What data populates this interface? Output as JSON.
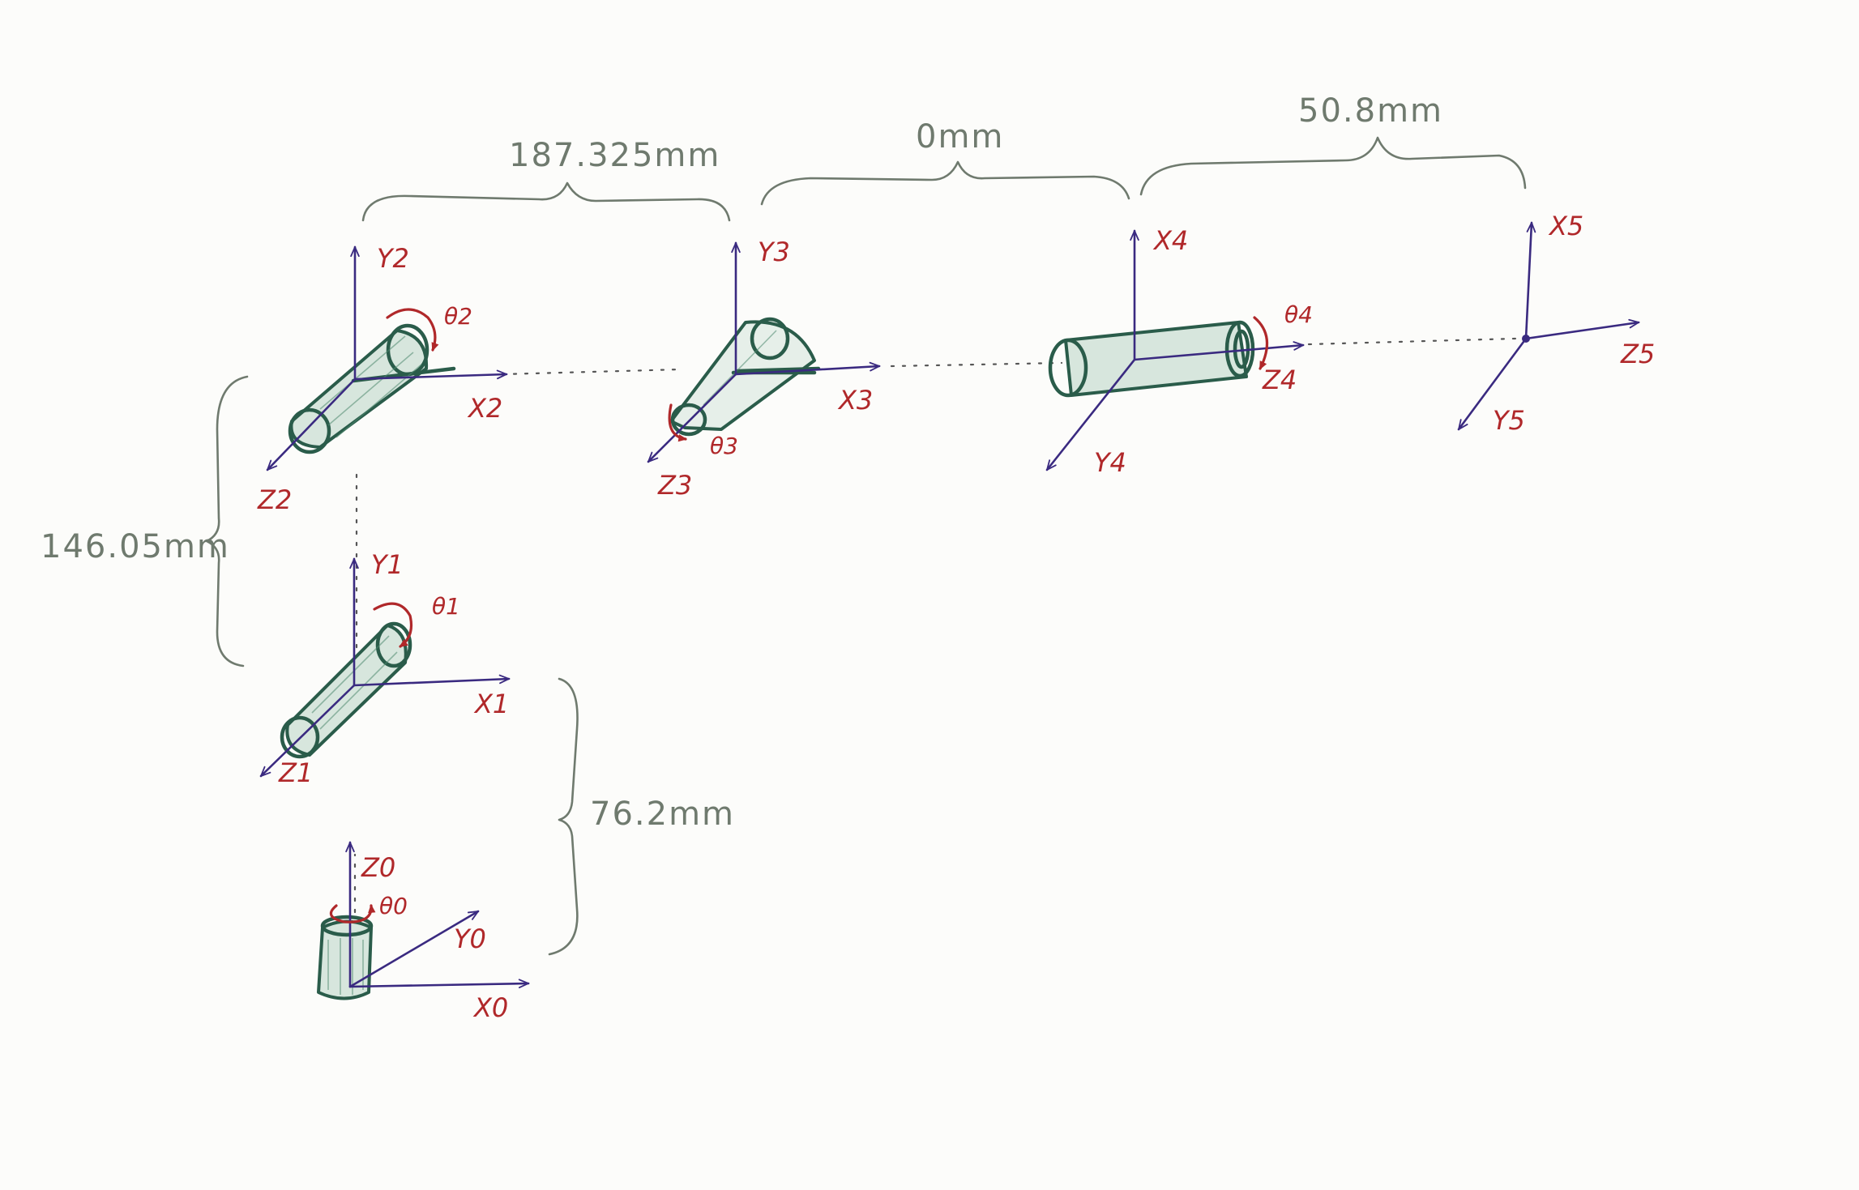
{
  "frames": [
    {
      "axis_labels": [
        "Z0",
        "Y0",
        "X0"
      ],
      "joint_angle": "θ0"
    },
    {
      "axis_labels": [
        "Y1",
        "X1",
        "Z1"
      ],
      "joint_angle": "θ1"
    },
    {
      "axis_labels": [
        "Y2",
        "X2",
        "Z2"
      ],
      "joint_angle": "θ2"
    },
    {
      "axis_labels": [
        "Y3",
        "X3",
        "Z3"
      ],
      "joint_angle": "θ3"
    },
    {
      "axis_labels": [
        "X4",
        "Z4",
        "Y4"
      ],
      "joint_angle": "θ4"
    },
    {
      "axis_labels": [
        "X5",
        "Z5",
        "Y5"
      ]
    }
  ],
  "dimensions": [
    {
      "label": "76.2mm"
    },
    {
      "label": "146.05mm"
    },
    {
      "label": "187.325mm"
    },
    {
      "label": "0mm"
    },
    {
      "label": "50.8mm"
    }
  ],
  "colors": {
    "axes": "#3a2a80",
    "labels": "#b0282a",
    "links": "#2a5c4a",
    "dimensions": "#6f7a6e"
  }
}
